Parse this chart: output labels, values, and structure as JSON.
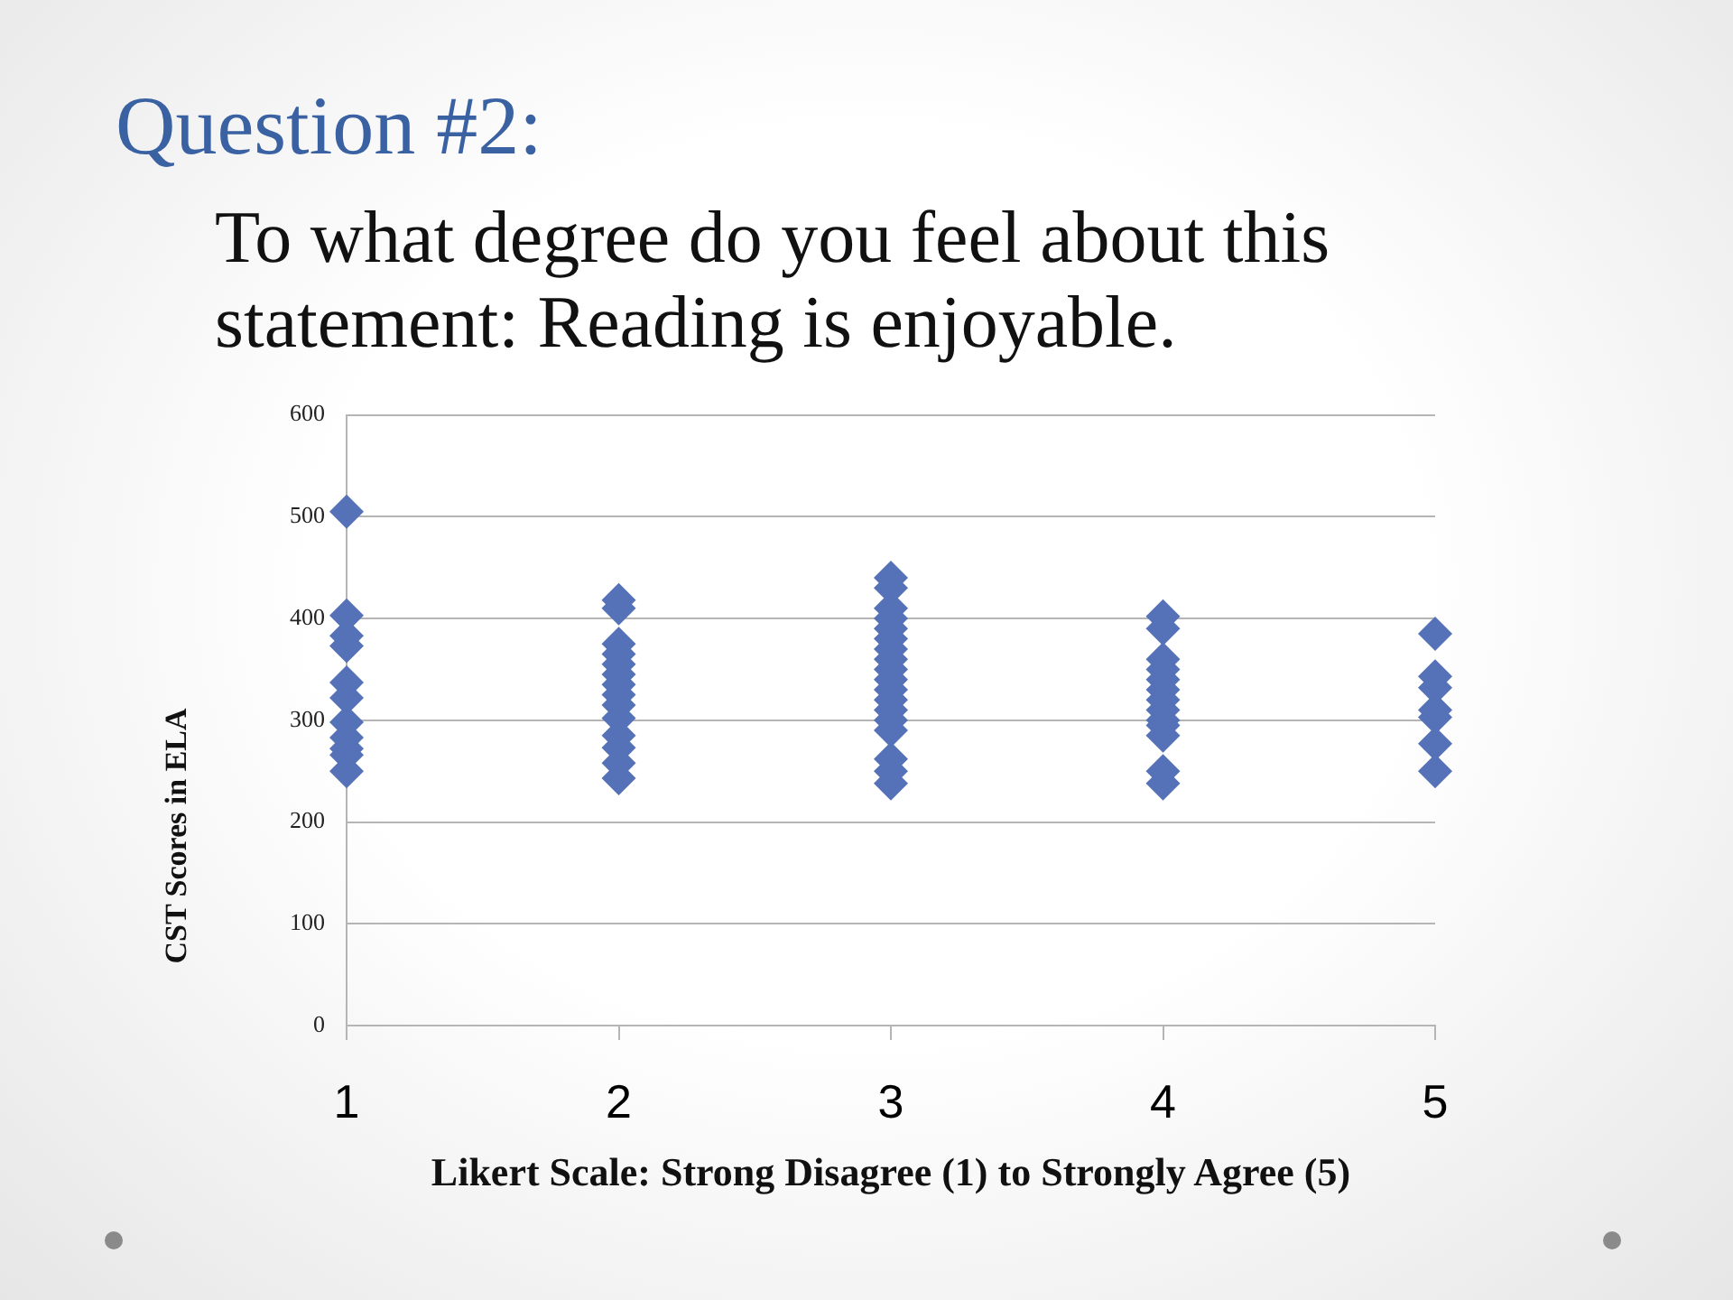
{
  "chart_data": {
    "type": "scatter",
    "title": "Question #2:",
    "subtitle": "To what degree do you feel about this statement: Reading is enjoyable.",
    "xlabel": "Likert Scale: Strong Disagree (1) to Strongly Agree (5)",
    "ylabel": "CST Scores in ELA",
    "x": [
      1,
      1,
      1,
      1,
      1,
      1,
      1,
      1,
      1,
      1,
      1,
      2,
      2,
      2,
      2,
      2,
      2,
      2,
      2,
      2,
      2,
      2,
      2,
      2,
      2,
      3,
      3,
      3,
      3,
      3,
      3,
      3,
      3,
      3,
      3,
      3,
      3,
      3,
      3,
      3,
      3,
      3,
      3,
      4,
      4,
      4,
      4,
      4,
      4,
      4,
      4,
      4,
      4,
      4,
      4,
      4,
      5,
      5,
      5,
      5,
      5,
      5,
      5
    ],
    "values": [
      505,
      403,
      383,
      373,
      337,
      322,
      298,
      283,
      272,
      266,
      250,
      418,
      410,
      375,
      365,
      355,
      345,
      335,
      325,
      315,
      302,
      285,
      273,
      258,
      243,
      440,
      430,
      410,
      400,
      390,
      380,
      370,
      360,
      350,
      340,
      330,
      320,
      310,
      300,
      290,
      262,
      250,
      238,
      402,
      390,
      360,
      350,
      340,
      330,
      320,
      310,
      300,
      295,
      285,
      250,
      238,
      385,
      343,
      332,
      310,
      303,
      277,
      250
    ],
    "color": "#5571b7",
    "marker": "diamond",
    "xlim": [
      1,
      5
    ],
    "xticks": [
      1,
      2,
      3,
      4,
      5
    ],
    "ylim": [
      0,
      600
    ],
    "yticks": [
      0,
      100,
      200,
      300,
      400,
      500,
      600
    ],
    "grid": "y"
  }
}
